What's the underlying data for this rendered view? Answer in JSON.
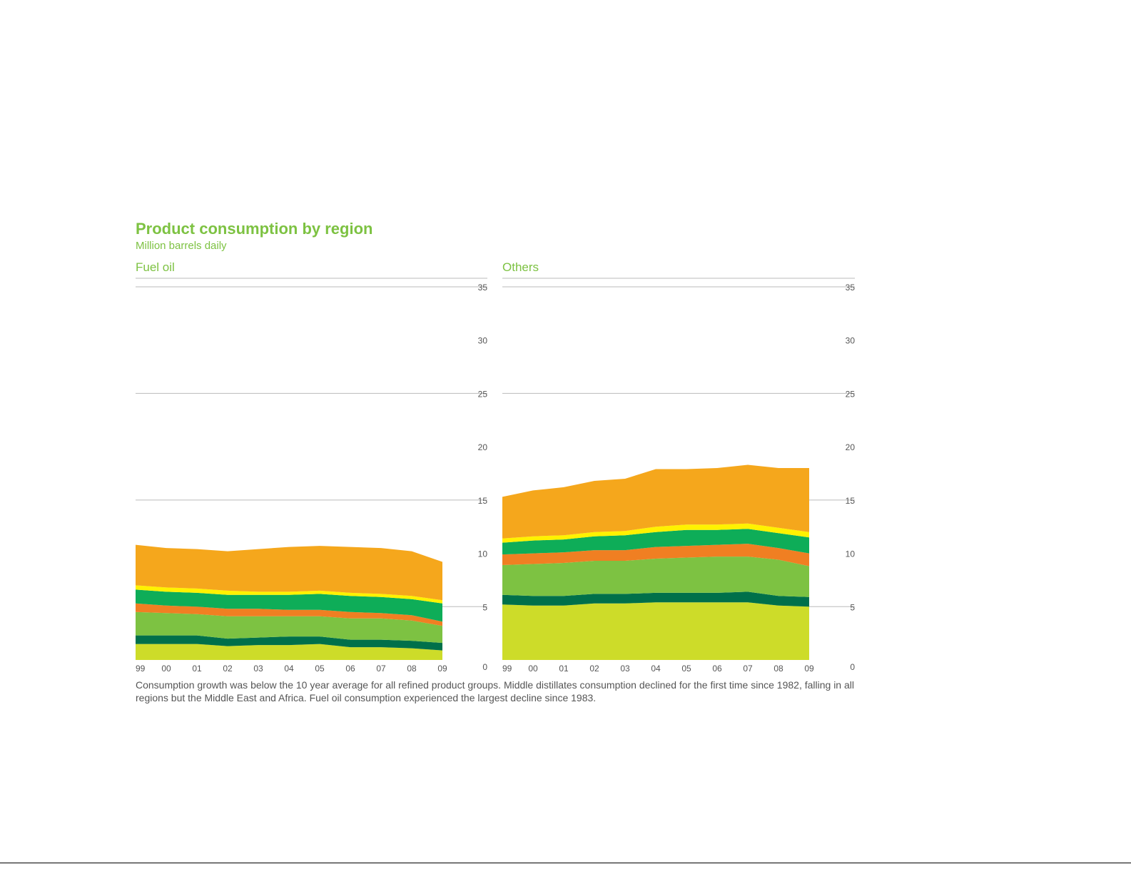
{
  "title": "Product consumption by region",
  "subtitle": "Million barrels daily",
  "caption": "Consumption growth was below the 10 year average for all refined product groups. Middle distillates consumption declined for the first time since 1982, falling in all regions but the Middle East and Africa. Fuel oil consumption experienced the largest decline since 1983.",
  "colors": {
    "layer1": "#cddc29",
    "layer2": "#00704a",
    "layer3": "#7dc242",
    "layer4": "#f07f22",
    "layer5": "#0ead58",
    "layer6": "#fff200",
    "layer7": "#f5a71c",
    "axis_text": "#555555",
    "gridline": "#bbbbbb",
    "panel_title": "#7dc242"
  },
  "chart_data": [
    {
      "type": "area",
      "stacked": true,
      "panel_title": "Fuel oil",
      "x": [
        "99",
        "00",
        "01",
        "02",
        "03",
        "04",
        "05",
        "06",
        "07",
        "08",
        "09"
      ],
      "ylim": [
        0,
        35
      ],
      "yticks": [
        "0",
        "5",
        "10",
        "15",
        "20",
        "25",
        "30",
        "35"
      ],
      "gridlines_at": [
        5,
        15,
        25,
        35
      ],
      "y_axis_side": "right",
      "series": [
        {
          "values": [
            1.5,
            1.5,
            1.5,
            1.3,
            1.4,
            1.4,
            1.5,
            1.2,
            1.2,
            1.1,
            0.9
          ]
        },
        {
          "values": [
            0.8,
            0.8,
            0.8,
            0.7,
            0.7,
            0.8,
            0.7,
            0.7,
            0.7,
            0.7,
            0.7
          ]
        },
        {
          "values": [
            2.2,
            2.1,
            2.0,
            2.1,
            2.0,
            1.9,
            1.9,
            2.0,
            2.0,
            1.9,
            1.6
          ]
        },
        {
          "values": [
            0.8,
            0.7,
            0.7,
            0.7,
            0.7,
            0.6,
            0.6,
            0.6,
            0.5,
            0.5,
            0.4
          ]
        },
        {
          "values": [
            1.3,
            1.3,
            1.3,
            1.3,
            1.3,
            1.4,
            1.5,
            1.5,
            1.5,
            1.5,
            1.7
          ]
        },
        {
          "values": [
            0.4,
            0.4,
            0.4,
            0.4,
            0.3,
            0.3,
            0.3,
            0.3,
            0.3,
            0.3,
            0.3
          ]
        },
        {
          "values": [
            3.8,
            3.7,
            3.7,
            3.7,
            4.0,
            4.2,
            4.2,
            4.3,
            4.3,
            4.2,
            3.6
          ]
        }
      ]
    },
    {
      "type": "area",
      "stacked": true,
      "panel_title": "Others",
      "x": [
        "99",
        "00",
        "01",
        "02",
        "03",
        "04",
        "05",
        "06",
        "07",
        "08",
        "09"
      ],
      "ylim": [
        0,
        35
      ],
      "yticks": [
        "0",
        "5",
        "10",
        "15",
        "20",
        "25",
        "30",
        "35"
      ],
      "gridlines_at": [
        5,
        15,
        25,
        35
      ],
      "y_axis_side": "right",
      "series": [
        {
          "values": [
            5.2,
            5.1,
            5.1,
            5.3,
            5.3,
            5.4,
            5.4,
            5.4,
            5.4,
            5.1,
            5.0
          ]
        },
        {
          "values": [
            0.9,
            0.9,
            0.9,
            0.9,
            0.9,
            0.9,
            0.9,
            0.9,
            1.0,
            0.9,
            0.9
          ]
        },
        {
          "values": [
            2.8,
            3.0,
            3.1,
            3.1,
            3.1,
            3.2,
            3.3,
            3.4,
            3.3,
            3.4,
            2.9
          ]
        },
        {
          "values": [
            1.0,
            1.0,
            1.0,
            1.0,
            1.0,
            1.1,
            1.1,
            1.1,
            1.2,
            1.1,
            1.2
          ]
        },
        {
          "values": [
            1.1,
            1.2,
            1.2,
            1.3,
            1.4,
            1.4,
            1.5,
            1.4,
            1.4,
            1.4,
            1.5
          ]
        },
        {
          "values": [
            0.4,
            0.4,
            0.4,
            0.4,
            0.4,
            0.5,
            0.5,
            0.5,
            0.5,
            0.5,
            0.5
          ]
        },
        {
          "values": [
            3.9,
            4.3,
            4.5,
            4.8,
            4.9,
            5.4,
            5.2,
            5.3,
            5.5,
            5.6,
            6.0
          ]
        }
      ]
    }
  ]
}
